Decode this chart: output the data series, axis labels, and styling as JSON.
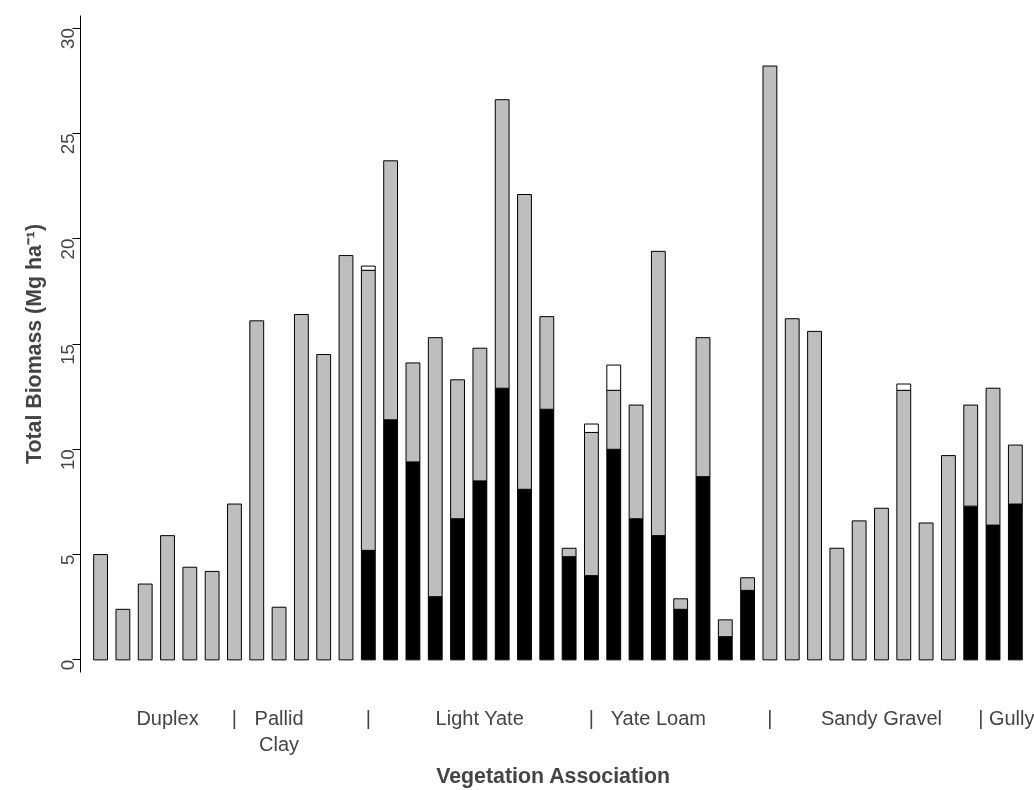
{
  "chart_data": {
    "type": "bar",
    "stacked": true,
    "xlabel": "Vegetation Association",
    "ylabel": "Total Biomass (Mg ha⁻¹)",
    "categories": [
      null,
      null,
      null,
      "Duplex",
      null,
      null,
      "|",
      null,
      "Pallid\nClay",
      null,
      null,
      null,
      "|",
      null,
      null,
      null,
      null,
      "Light Yate",
      null,
      null,
      null,
      null,
      "|",
      null,
      null,
      "Yate Loam",
      null,
      null,
      null,
      null,
      "|",
      null,
      null,
      null,
      null,
      "Sandy Gravel",
      null,
      null,
      null,
      null,
      null,
      "| Gully"
    ],
    "series": [
      {
        "color": "#000000",
        "values": [
          null,
          null,
          null,
          null,
          null,
          null,
          null,
          null,
          null,
          null,
          null,
          null,
          5.2,
          11.4,
          9.4,
          3.0,
          6.7,
          8.5,
          12.9,
          8.1,
          11.9,
          4.9,
          4.0,
          10.0,
          6.7,
          5.9,
          2.4,
          8.7,
          1.1,
          3.3,
          null,
          null,
          null,
          null,
          null,
          null,
          null,
          null,
          null,
          7.3,
          6.4,
          7.4
        ]
      },
      {
        "color": "#bebebe",
        "values": [
          5.0,
          2.4,
          3.6,
          5.9,
          4.4,
          4.2,
          7.4,
          16.1,
          2.5,
          16.4,
          14.5,
          19.2,
          13.3,
          12.3,
          4.7,
          12.3,
          6.6,
          6.3,
          13.7,
          14.0,
          4.4,
          0.4,
          6.8,
          2.8,
          5.4,
          13.5,
          0.5,
          6.6,
          0.8,
          0.6,
          28.2,
          16.2,
          15.6,
          5.3,
          6.6,
          7.2,
          12.8,
          6.5,
          9.7,
          4.8,
          6.5,
          2.8
        ]
      },
      {
        "color": "#ffffff",
        "values": [
          null,
          null,
          null,
          null,
          null,
          null,
          null,
          null,
          null,
          null,
          null,
          null,
          0.2,
          null,
          null,
          null,
          null,
          null,
          null,
          null,
          null,
          null,
          0.4,
          1.2,
          null,
          null,
          null,
          null,
          null,
          null,
          null,
          null,
          null,
          null,
          null,
          null,
          0.3,
          null,
          null,
          null,
          null,
          null
        ]
      }
    ],
    "ylim": [
      -0.6,
      30.6
    ],
    "yticks": [
      0,
      5,
      10,
      15,
      20,
      25,
      30
    ],
    "grid": false
  }
}
